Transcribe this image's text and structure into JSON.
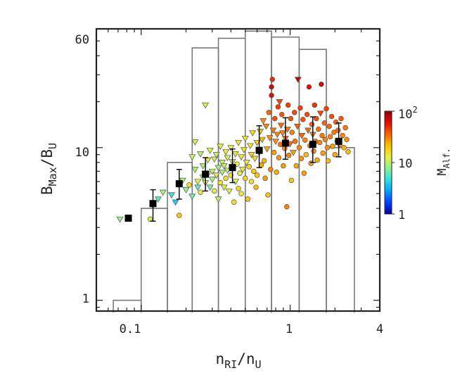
{
  "chart_data": {
    "type": "scatter",
    "xscale": "log",
    "yscale": "log",
    "xlim": [
      0.05,
      4
    ],
    "ylim": [
      0.85,
      60
    ],
    "x_ticks": [
      {
        "value": 0.1,
        "label": "0.1"
      },
      {
        "value": 1,
        "label": "1"
      },
      {
        "value": 4,
        "label": "4"
      }
    ],
    "y_ticks": [
      {
        "value": 1,
        "label": "1"
      },
      {
        "value": 10,
        "label": "10"
      },
      {
        "value": 60,
        "label": "60"
      }
    ],
    "xlabel": {
      "base": "n",
      "sub1": "RI",
      "mid": "/n",
      "sub2": "U"
    },
    "ylabel": {
      "base": "B",
      "sub1": "Max",
      "mid": "/B",
      "sub2": "U"
    },
    "colorbar": {
      "label": {
        "base": "M",
        "sub": "Alf."
      },
      "range": [
        1,
        100
      ],
      "ticks": [
        {
          "value": 1,
          "label": "1"
        },
        {
          "value": 10,
          "label": "10"
        },
        {
          "value": 100,
          "label": "10",
          "sup": "2"
        }
      ],
      "colors": [
        "#0000a0",
        "#0040ff",
        "#00a0ff",
        "#30e0e0",
        "#90f090",
        "#e8f040",
        "#ffc000",
        "#ff6000",
        "#e01000",
        "#900000"
      ]
    },
    "histogram": {
      "edges": [
        0.065,
        0.1,
        0.15,
        0.22,
        0.33,
        0.5,
        0.75,
        1.15,
        1.75,
        2.7
      ],
      "counts": [
        1,
        4,
        8,
        45,
        52,
        58,
        53,
        44,
        10
      ]
    },
    "binned_means": {
      "x": [
        0.082,
        0.12,
        0.18,
        0.27,
        0.41,
        0.62,
        0.93,
        1.42,
        2.12
      ],
      "y": [
        3.45,
        4.3,
        5.8,
        6.7,
        7.4,
        9.6,
        10.7,
        10.5,
        11.0
      ],
      "err_low": [
        0,
        1.0,
        1.2,
        1.5,
        1.5,
        2.2,
        2.3,
        2.5,
        2.3
      ],
      "err_high": [
        0,
        1.0,
        1.4,
        1.9,
        2.4,
        4.3,
        5.0,
        5.4,
        3.5
      ]
    },
    "scatter_points": {
      "columns": [
        "x",
        "y",
        "M_Alf",
        "marker"
      ],
      "points": [
        [
          0.072,
          3.4,
          8,
          "tri"
        ],
        [
          0.115,
          3.4,
          12,
          "circ"
        ],
        [
          0.12,
          4.2,
          10,
          "tri"
        ],
        [
          0.13,
          4.6,
          6,
          "tri"
        ],
        [
          0.14,
          5.1,
          9,
          "tri"
        ],
        [
          0.16,
          4.9,
          5,
          "tri"
        ],
        [
          0.17,
          4.4,
          4,
          "tri"
        ],
        [
          0.18,
          3.6,
          20,
          "circ"
        ],
        [
          0.19,
          6.1,
          10,
          "tri"
        ],
        [
          0.2,
          5.3,
          8,
          "tri"
        ],
        [
          0.21,
          5.7,
          15,
          "circ"
        ],
        [
          0.22,
          4.8,
          7,
          "tri"
        ],
        [
          0.22,
          8.7,
          11,
          "tri"
        ],
        [
          0.23,
          10.9,
          12,
          "tri"
        ],
        [
          0.23,
          7.2,
          9,
          "tri"
        ],
        [
          0.24,
          6.0,
          13,
          "tri"
        ],
        [
          0.24,
          5.5,
          6,
          "tri"
        ],
        [
          0.25,
          9.1,
          10,
          "tri"
        ],
        [
          0.25,
          5.1,
          14,
          "circ"
        ],
        [
          0.26,
          7.6,
          9,
          "tri"
        ],
        [
          0.26,
          6.4,
          8,
          "tri"
        ],
        [
          0.27,
          19.0,
          12,
          "tri"
        ],
        [
          0.27,
          5.9,
          11,
          "tri"
        ],
        [
          0.28,
          8.3,
          14,
          "tri"
        ],
        [
          0.28,
          6.8,
          16,
          "circ"
        ],
        [
          0.29,
          5.5,
          7,
          "tri"
        ],
        [
          0.29,
          9.6,
          12,
          "tri"
        ],
        [
          0.3,
          7.0,
          10,
          "tri"
        ],
        [
          0.3,
          6.2,
          9,
          "tri"
        ],
        [
          0.31,
          8.4,
          11,
          "tri"
        ],
        [
          0.31,
          5.2,
          13,
          "circ"
        ],
        [
          0.32,
          9.0,
          10,
          "tri"
        ],
        [
          0.32,
          6.6,
          12,
          "tri"
        ],
        [
          0.33,
          7.4,
          8,
          "tri"
        ],
        [
          0.33,
          4.6,
          10,
          "tri"
        ],
        [
          0.34,
          10.2,
          13,
          "tri"
        ],
        [
          0.34,
          5.9,
          15,
          "circ"
        ],
        [
          0.35,
          8.0,
          11,
          "tri"
        ],
        [
          0.35,
          6.9,
          9,
          "tri"
        ],
        [
          0.36,
          7.6,
          10,
          "tri"
        ],
        [
          0.36,
          5.5,
          12,
          "tri"
        ],
        [
          0.37,
          9.4,
          14,
          "tri"
        ],
        [
          0.37,
          6.3,
          16,
          "circ"
        ],
        [
          0.38,
          8.6,
          11,
          "tri"
        ],
        [
          0.38,
          7.1,
          10,
          "tri"
        ],
        [
          0.39,
          5.2,
          12,
          "tri"
        ],
        [
          0.4,
          10.0,
          13,
          "tri"
        ],
        [
          0.4,
          6.6,
          15,
          "circ"
        ],
        [
          0.41,
          8.1,
          10,
          "tri"
        ],
        [
          0.41,
          7.3,
          11,
          "tri"
        ],
        [
          0.42,
          4.4,
          16,
          "circ"
        ],
        [
          0.43,
          9.1,
          14,
          "tri"
        ],
        [
          0.43,
          6.0,
          12,
          "tri"
        ],
        [
          0.44,
          7.8,
          13,
          "circ"
        ],
        [
          0.45,
          5.4,
          17,
          "circ"
        ],
        [
          0.45,
          10.8,
          14,
          "tri"
        ],
        [
          0.46,
          6.8,
          12,
          "circ"
        ],
        [
          0.47,
          8.7,
          15,
          "tri"
        ],
        [
          0.47,
          5.0,
          14,
          "circ"
        ],
        [
          0.48,
          7.2,
          13,
          "tri"
        ],
        [
          0.49,
          9.7,
          16,
          "tri"
        ],
        [
          0.5,
          6.3,
          18,
          "circ"
        ],
        [
          0.5,
          11.5,
          15,
          "tri"
        ],
        [
          0.51,
          8.0,
          14,
          "tri"
        ],
        [
          0.52,
          4.6,
          20,
          "circ"
        ],
        [
          0.53,
          7.5,
          17,
          "circ"
        ],
        [
          0.54,
          10.3,
          16,
          "tri"
        ],
        [
          0.55,
          6.0,
          15,
          "circ"
        ],
        [
          0.55,
          9.0,
          18,
          "tri"
        ],
        [
          0.56,
          12.5,
          17,
          "tri"
        ],
        [
          0.57,
          7.0,
          19,
          "circ"
        ],
        [
          0.58,
          8.5,
          16,
          "tri"
        ],
        [
          0.59,
          5.5,
          22,
          "circ"
        ],
        [
          0.6,
          10.8,
          18,
          "tri"
        ],
        [
          0.6,
          6.6,
          20,
          "circ"
        ],
        [
          0.62,
          9.3,
          21,
          "tri"
        ],
        [
          0.63,
          12.8,
          19,
          "tri"
        ],
        [
          0.64,
          7.7,
          24,
          "circ"
        ],
        [
          0.65,
          11.3,
          22,
          "tri"
        ],
        [
          0.66,
          15.0,
          28,
          "tri"
        ],
        [
          0.67,
          8.2,
          23,
          "circ"
        ],
        [
          0.68,
          6.3,
          26,
          "circ"
        ],
        [
          0.69,
          13.8,
          30,
          "tri"
        ],
        [
          0.7,
          9.8,
          25,
          "tri"
        ],
        [
          0.71,
          4.9,
          20,
          "circ"
        ],
        [
          0.72,
          17.0,
          35,
          "circ"
        ],
        [
          0.73,
          11.6,
          28,
          "tri"
        ],
        [
          0.74,
          7.2,
          30,
          "circ"
        ],
        [
          0.75,
          22.0,
          60,
          "circ"
        ],
        [
          0.75,
          25.0,
          70,
          "circ"
        ],
        [
          0.76,
          28.0,
          50,
          "circ"
        ],
        [
          0.77,
          13.0,
          32,
          "tri"
        ],
        [
          0.78,
          9.3,
          26,
          "circ"
        ],
        [
          0.79,
          15.5,
          40,
          "circ"
        ],
        [
          0.8,
          11.0,
          28,
          "tri"
        ],
        [
          0.81,
          6.9,
          24,
          "circ"
        ],
        [
          0.82,
          12.2,
          30,
          "tri"
        ],
        [
          0.83,
          18.5,
          45,
          "circ"
        ],
        [
          0.84,
          8.6,
          28,
          "circ"
        ],
        [
          0.85,
          20.0,
          42,
          "tri"
        ],
        [
          0.86,
          10.5,
          32,
          "circ"
        ],
        [
          0.87,
          14.0,
          35,
          "tri"
        ],
        [
          0.88,
          16.5,
          38,
          "circ"
        ],
        [
          0.89,
          12.5,
          30,
          "tri"
        ],
        [
          0.9,
          7.6,
          26,
          "circ"
        ],
        [
          0.92,
          9.9,
          28,
          "circ"
        ],
        [
          0.93,
          11.5,
          34,
          "tri"
        ],
        [
          0.95,
          4.1,
          30,
          "circ"
        ],
        [
          0.96,
          13.2,
          32,
          "tri"
        ],
        [
          0.97,
          19.0,
          44,
          "circ"
        ],
        [
          0.98,
          8.9,
          30,
          "circ"
        ],
        [
          1.0,
          10.6,
          34,
          "tri"
        ],
        [
          1.01,
          15.5,
          40,
          "circ"
        ],
        [
          1.02,
          6.1,
          20,
          "circ"
        ],
        [
          1.03,
          12.6,
          30,
          "circ"
        ],
        [
          1.05,
          9.3,
          26,
          "tri"
        ],
        [
          1.07,
          17.0,
          42,
          "circ"
        ],
        [
          1.08,
          11.0,
          32,
          "circ"
        ],
        [
          1.1,
          7.6,
          24,
          "circ"
        ],
        [
          1.12,
          13.8,
          36,
          "tri"
        ],
        [
          1.13,
          28.0,
          75,
          "tri"
        ],
        [
          1.15,
          10.0,
          30,
          "circ"
        ],
        [
          1.17,
          18.2,
          45,
          "circ"
        ],
        [
          1.19,
          8.5,
          28,
          "circ"
        ],
        [
          1.2,
          12.0,
          35,
          "tri"
        ],
        [
          1.22,
          15.3,
          40,
          "circ"
        ],
        [
          1.24,
          6.8,
          26,
          "circ"
        ],
        [
          1.26,
          11.2,
          30,
          "circ"
        ],
        [
          1.28,
          9.0,
          22,
          "circ"
        ],
        [
          1.3,
          16.5,
          42,
          "circ"
        ],
        [
          1.32,
          13.0,
          34,
          "tri"
        ],
        [
          1.34,
          25.0,
          60,
          "circ"
        ],
        [
          1.36,
          10.3,
          30,
          "circ"
        ],
        [
          1.38,
          7.9,
          26,
          "circ"
        ],
        [
          1.4,
          14.2,
          36,
          "circ"
        ],
        [
          1.42,
          12.2,
          30,
          "tri"
        ],
        [
          1.44,
          9.5,
          28,
          "circ"
        ],
        [
          1.46,
          19.0,
          48,
          "circ"
        ],
        [
          1.48,
          11.0,
          32,
          "circ"
        ],
        [
          1.5,
          15.5,
          40,
          "circ"
        ],
        [
          1.52,
          8.3,
          24,
          "circ"
        ],
        [
          1.55,
          13.2,
          34,
          "circ"
        ],
        [
          1.58,
          10.8,
          30,
          "circ"
        ],
        [
          1.6,
          16.8,
          42,
          "tri"
        ],
        [
          1.62,
          26.0,
          70,
          "circ"
        ],
        [
          1.64,
          12.0,
          32,
          "circ"
        ],
        [
          1.66,
          9.2,
          26,
          "circ"
        ],
        [
          1.7,
          14.5,
          36,
          "circ"
        ],
        [
          1.72,
          11.3,
          30,
          "circ"
        ],
        [
          1.75,
          18.0,
          44,
          "circ"
        ],
        [
          1.78,
          10.0,
          28,
          "circ"
        ],
        [
          1.8,
          8.2,
          22,
          "circ"
        ],
        [
          1.83,
          13.8,
          34,
          "circ"
        ],
        [
          1.86,
          11.8,
          30,
          "circ"
        ],
        [
          1.9,
          16.0,
          40,
          "circ"
        ],
        [
          1.93,
          10.2,
          26,
          "circ"
        ],
        [
          1.97,
          12.6,
          32,
          "circ"
        ],
        [
          2.0,
          9.0,
          24,
          "circ"
        ],
        [
          2.03,
          14.7,
          36,
          "circ"
        ],
        [
          2.07,
          11.0,
          28,
          "circ"
        ],
        [
          2.1,
          13.0,
          32,
          "circ"
        ],
        [
          2.15,
          10.5,
          26,
          "circ"
        ],
        [
          2.2,
          15.5,
          38,
          "circ"
        ],
        [
          2.25,
          12.0,
          30,
          "circ"
        ],
        [
          2.3,
          10.0,
          24,
          "circ"
        ],
        [
          2.35,
          13.5,
          32,
          "circ"
        ],
        [
          2.4,
          11.3,
          28,
          "circ"
        ],
        [
          2.45,
          9.4,
          22,
          "circ"
        ]
      ]
    }
  }
}
